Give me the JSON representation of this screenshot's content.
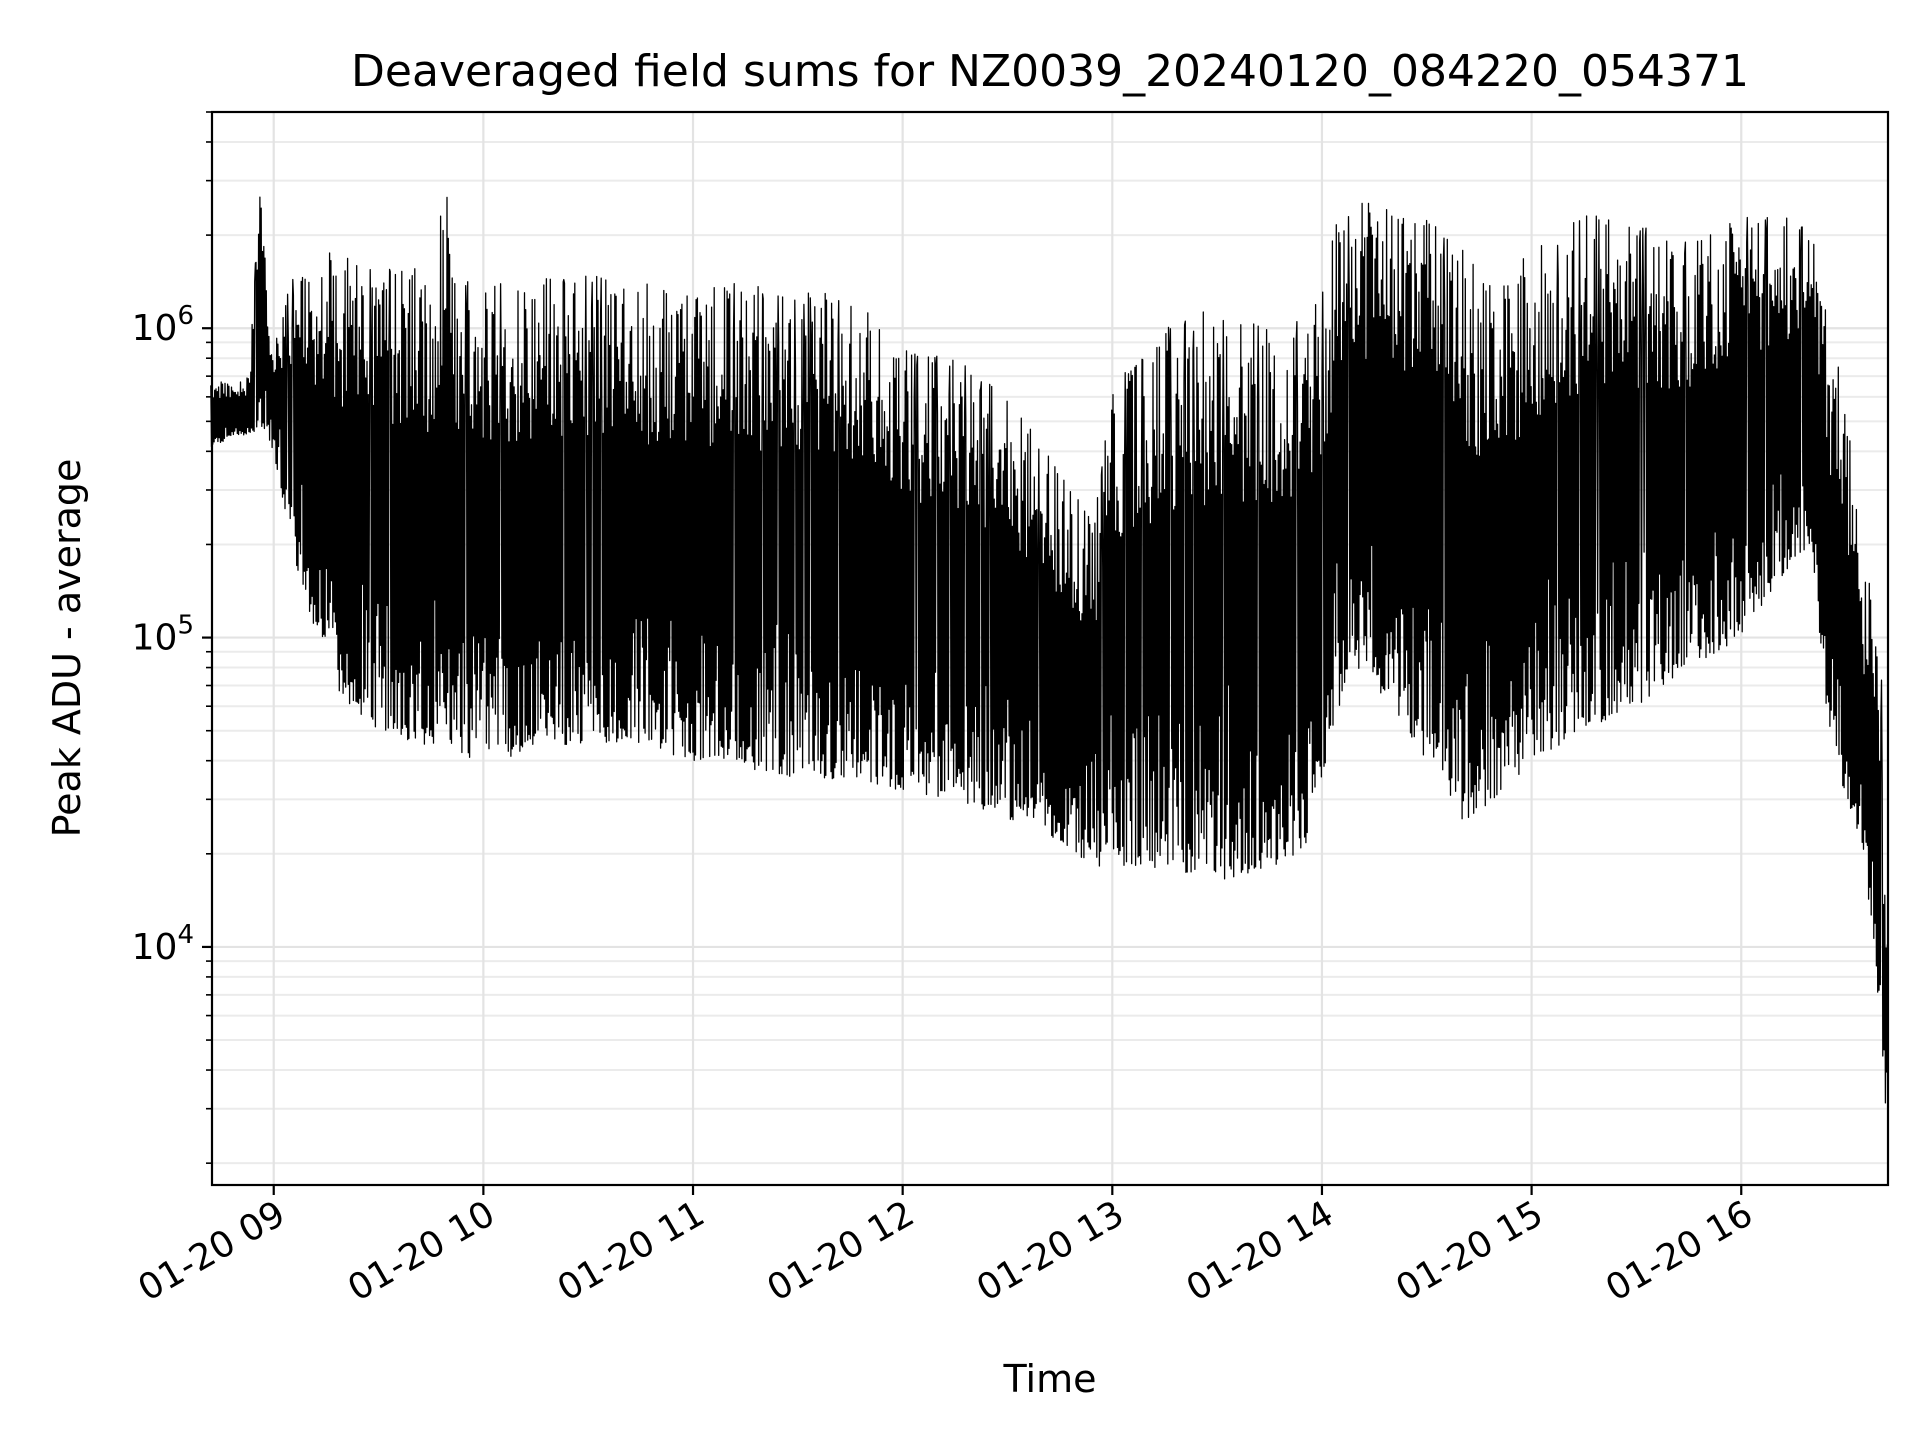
{
  "chart_data": {
    "type": "line",
    "title": "Deaveraged field sums for NZ0039_20240120_084220_054371",
    "xlabel": "Time",
    "ylabel": "Peak ADU - average",
    "yscale": "log",
    "xlim": [
      "2024-01-20 08:42:20",
      "2024-01-20 16:42:00"
    ],
    "ylim": [
      1700,
      5000000
    ],
    "grid": true,
    "line_color": "#000000",
    "x_ticks": [
      {
        "value": "2024-01-20 09:00",
        "label": "01-20 09"
      },
      {
        "value": "2024-01-20 10:00",
        "label": "01-20 10"
      },
      {
        "value": "2024-01-20 11:00",
        "label": "01-20 11"
      },
      {
        "value": "2024-01-20 12:00",
        "label": "01-20 12"
      },
      {
        "value": "2024-01-20 13:00",
        "label": "01-20 13"
      },
      {
        "value": "2024-01-20 14:00",
        "label": "01-20 14"
      },
      {
        "value": "2024-01-20 15:00",
        "label": "01-20 15"
      },
      {
        "value": "2024-01-20 16:00",
        "label": "01-20 16"
      }
    ],
    "y_ticks": [
      {
        "value": 10000,
        "base": "10",
        "exp": "4"
      },
      {
        "value": 100000,
        "base": "10",
        "exp": "5"
      },
      {
        "value": 1000000,
        "base": "10",
        "exp": "6"
      }
    ],
    "series": [
      {
        "x": [
          "08:42",
          "08:48",
          "08:53",
          "08:56",
          "08:57",
          "09:00",
          "09:05",
          "09:10",
          "09:15",
          "09:20",
          "09:25",
          "09:30",
          "09:35",
          "09:40",
          "09:45",
          "09:50",
          "09:51",
          "09:55",
          "10:00",
          "10:06",
          "10:15",
          "10:30",
          "10:45",
          "11:00",
          "11:15",
          "11:30",
          "11:45",
          "12:00",
          "12:15",
          "12:30",
          "12:45",
          "12:55",
          "13:00",
          "13:15",
          "13:30",
          "13:45",
          "13:55",
          "14:00",
          "14:05",
          "14:10",
          "14:20",
          "14:30",
          "14:40",
          "14:50",
          "15:00",
          "15:15",
          "15:30",
          "15:45",
          "16:00",
          "16:10",
          "16:20",
          "16:25",
          "16:30",
          "16:35",
          "16:38",
          "16:40",
          "16:41",
          "16:42"
        ],
        "high": [
          700000,
          650000,
          700000,
          3000000,
          2000000,
          850000,
          1500000,
          1600000,
          1800000,
          1700000,
          1700000,
          1600000,
          1600000,
          1700000,
          1500000,
          3500000,
          1600000,
          1500000,
          1500000,
          1400000,
          1500000,
          1500000,
          1400000,
          1400000,
          1400000,
          1300000,
          1300000,
          900000,
          800000,
          600000,
          350000,
          250000,
          700000,
          1000000,
          1200000,
          1100000,
          1200000,
          1300000,
          2500000,
          2600000,
          2400000,
          2300000,
          1800000,
          1400000,
          1800000,
          2400000,
          2200000,
          1900000,
          2300000,
          2300000,
          2200000,
          1000000,
          600000,
          150000,
          160000,
          100000,
          15000,
          15000
        ],
        "low": [
          400000,
          450000,
          450000,
          480000,
          480000,
          400000,
          200000,
          120000,
          90000,
          60000,
          55000,
          50000,
          50000,
          45000,
          45000,
          48000,
          45000,
          40000,
          45000,
          40000,
          45000,
          45000,
          45000,
          40000,
          38000,
          35000,
          35000,
          32000,
          30000,
          26000,
          22000,
          18000,
          18000,
          18000,
          16000,
          18000,
          20000,
          35000,
          60000,
          80000,
          60000,
          40000,
          25000,
          30000,
          40000,
          50000,
          60000,
          80000,
          100000,
          150000,
          200000,
          50000,
          30000,
          20000,
          10000,
          5000,
          3000,
          2500
        ]
      }
    ]
  }
}
